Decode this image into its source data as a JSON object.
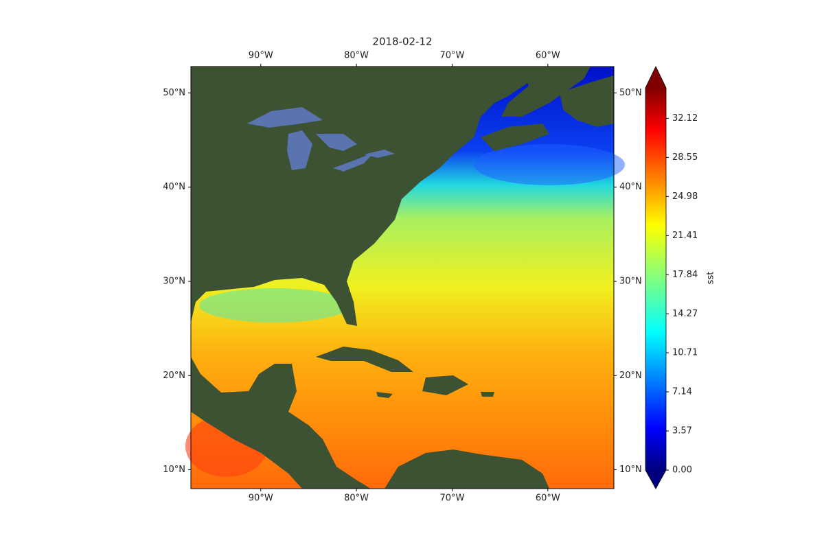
{
  "chart_data": {
    "type": "map",
    "title": "2018-02-12",
    "xlim": [
      -97.3,
      -53.1
    ],
    "ylim": [
      8,
      52.8
    ],
    "xticks": [
      {
        "value": -90,
        "label": "90°W"
      },
      {
        "value": -80,
        "label": "80°W"
      },
      {
        "value": -70,
        "label": "70°W"
      },
      {
        "value": -60,
        "label": "60°W"
      }
    ],
    "yticks": [
      {
        "value": 10,
        "label": "10°N"
      },
      {
        "value": 20,
        "label": "20°N"
      },
      {
        "value": 30,
        "label": "30°N"
      },
      {
        "value": 40,
        "label": "40°N"
      },
      {
        "value": 50,
        "label": "50°N"
      }
    ],
    "colorbar": {
      "label": "sst",
      "clim": [
        0,
        34.9
      ],
      "ticks": [
        {
          "value": 0,
          "label": "0.00"
        },
        {
          "value": 3.57,
          "label": "3.57"
        },
        {
          "value": 7.14,
          "label": "7.14"
        },
        {
          "value": 10.71,
          "label": "10.71"
        },
        {
          "value": 14.27,
          "label": "14.27"
        },
        {
          "value": 17.84,
          "label": "17.84"
        },
        {
          "value": 21.41,
          "label": "21.41"
        },
        {
          "value": 24.98,
          "label": "24.98"
        },
        {
          "value": 28.55,
          "label": "28.55"
        },
        {
          "value": 32.12,
          "label": "32.12"
        }
      ]
    }
  }
}
